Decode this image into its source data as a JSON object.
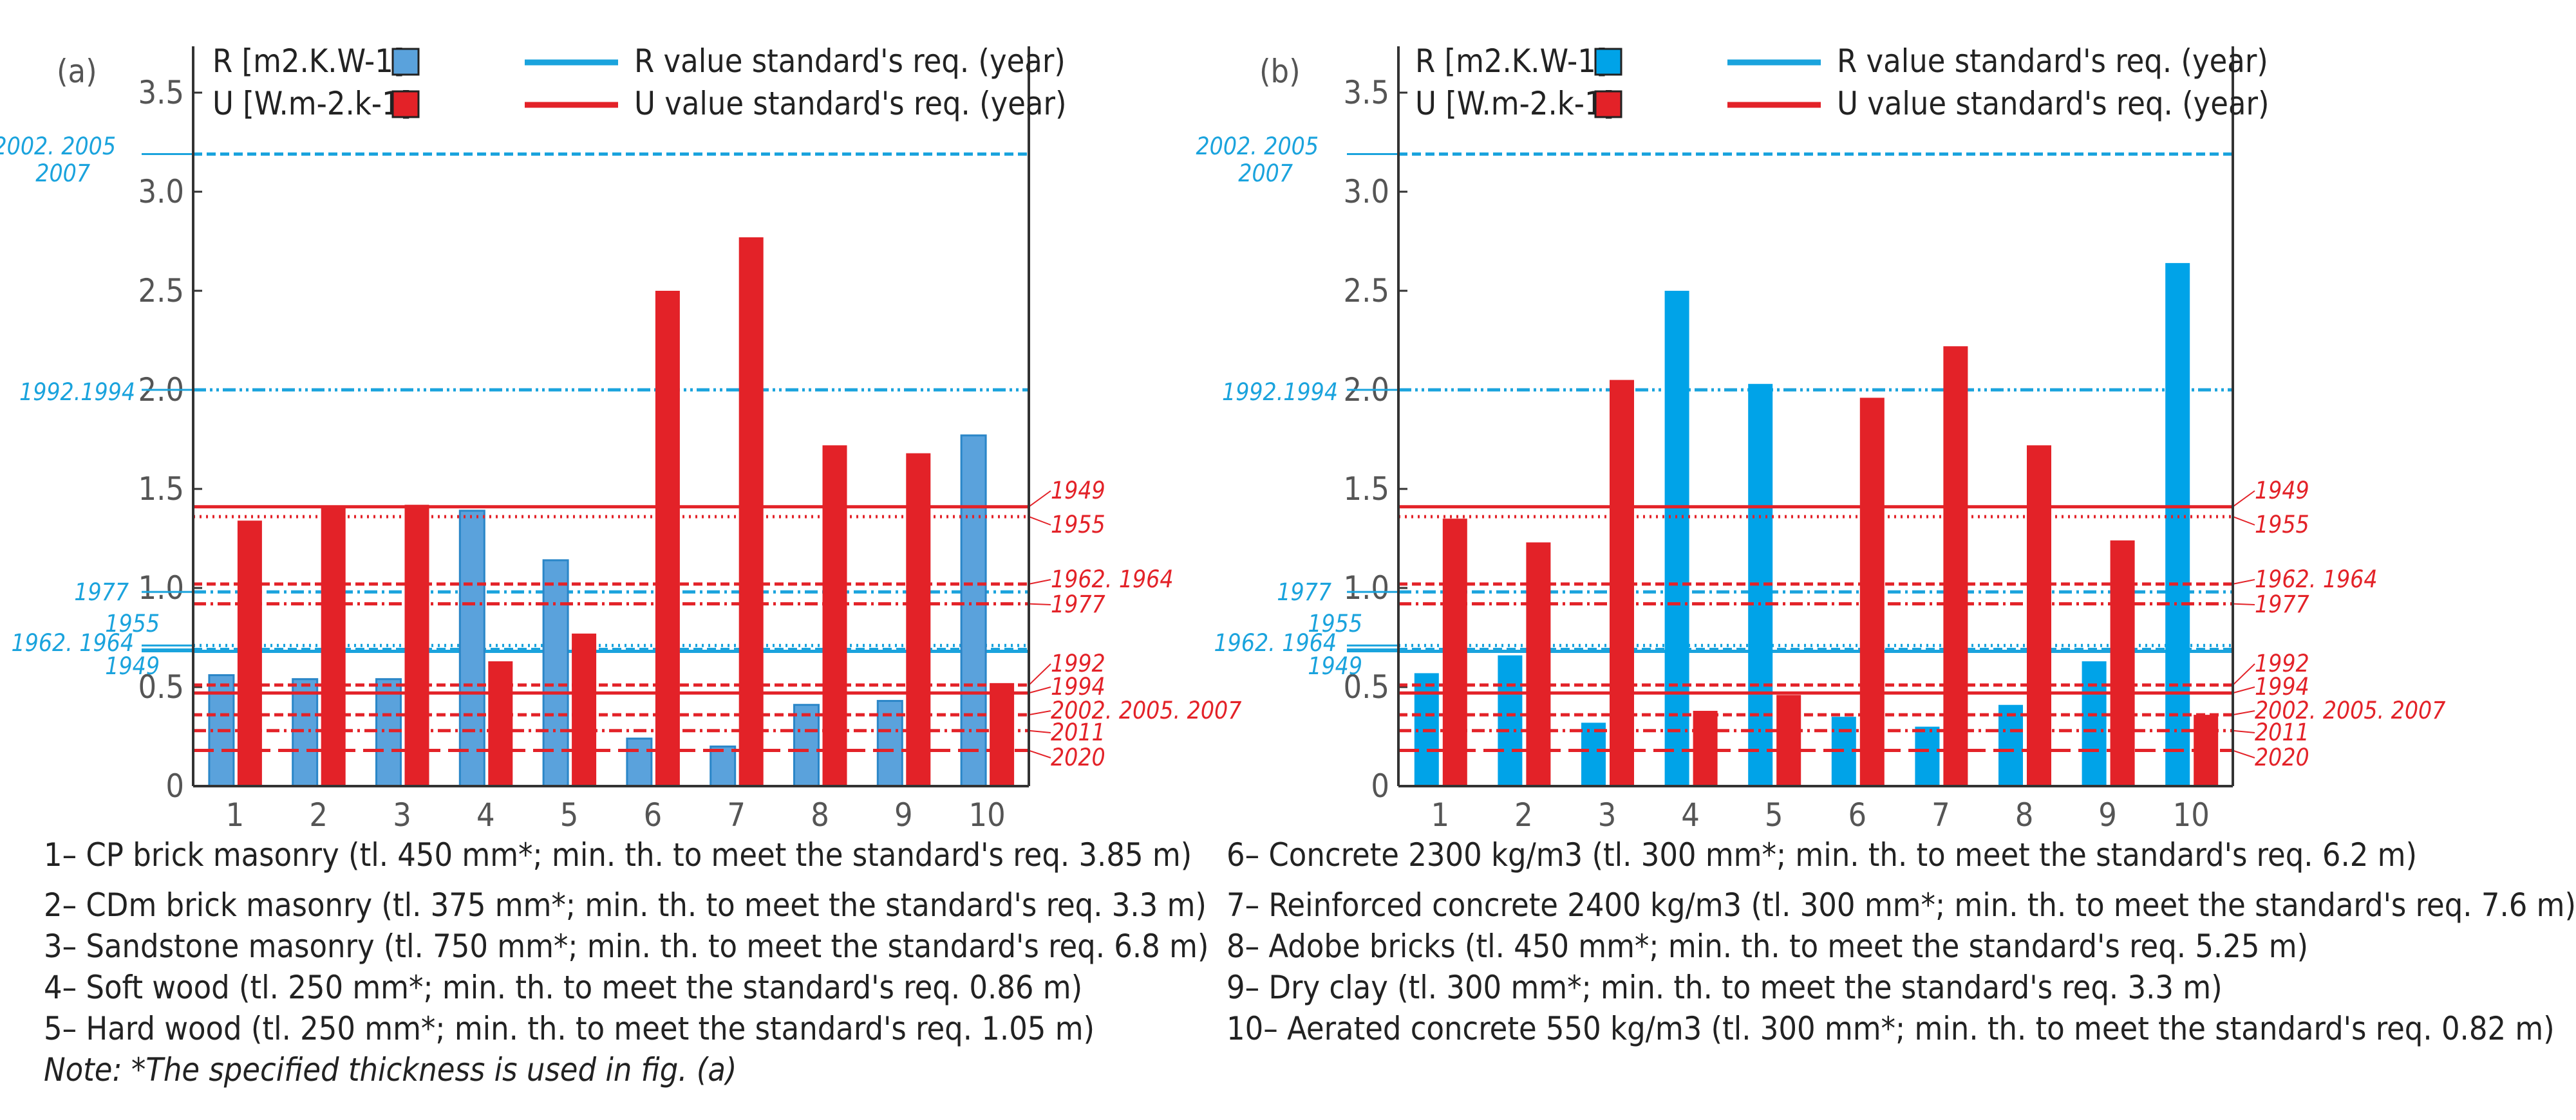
{
  "colors": {
    "r_bar_a": "#5aa2dc",
    "r_bar_a_edge": "#2a86c8",
    "r_bar_b": "#00a3e8",
    "u_bar": "#e32228",
    "r_line": "#1aa3dd",
    "u_line": "#e32228",
    "axis": "#333333"
  },
  "legend": {
    "r_label": "R [m2.K.W-1]",
    "u_label": "U [W.m-2.k-1]",
    "r_req_label": "R value standard's req. (year)",
    "u_req_label": "U value standard's req. (year)"
  },
  "chart_data": [
    {
      "panel": "(a)",
      "type": "bar",
      "categories": [
        "1",
        "2",
        "3",
        "4",
        "5",
        "6",
        "7",
        "8",
        "9",
        "10"
      ],
      "ylim": [
        0,
        3.75
      ],
      "yticks": [
        "0",
        "0.5",
        "1.0",
        "1.5",
        "2.0",
        "2.5",
        "3.0",
        "3.5"
      ],
      "ytick_values": [
        0,
        0.5,
        1.0,
        1.5,
        2.0,
        2.5,
        3.0,
        3.5
      ],
      "series": [
        {
          "name": "R [m2.K.W-1]",
          "values": [
            0.56,
            0.54,
            0.54,
            1.39,
            1.14,
            0.24,
            0.2,
            0.41,
            0.43,
            1.77
          ]
        },
        {
          "name": "U [W.m-2.k-1]",
          "values": [
            1.34,
            1.41,
            1.42,
            0.63,
            0.77,
            2.5,
            2.77,
            1.72,
            1.68,
            0.52
          ]
        }
      ],
      "r_reference_lines": [
        {
          "value": 3.19,
          "style": "dashed",
          "labels": [
            "2002. 2005",
            "2007"
          ]
        },
        {
          "value": 2.0,
          "style": "dashdotdot",
          "labels": [
            "1992.1994"
          ]
        },
        {
          "value": 0.98,
          "style": "dashdot",
          "labels": [
            "1977"
          ]
        },
        {
          "value": 0.71,
          "style": "dotted",
          "labels": [
            "1955"
          ]
        },
        {
          "value": 0.69,
          "style": "dashed",
          "labels": [
            "1962. 1964"
          ]
        },
        {
          "value": 0.68,
          "style": "solid",
          "labels": [
            "1949"
          ]
        }
      ],
      "u_reference_lines": [
        {
          "value": 1.41,
          "style": "solid",
          "label": "1949"
        },
        {
          "value": 1.36,
          "style": "dotted",
          "label": "1955"
        },
        {
          "value": 1.02,
          "style": "dashed",
          "label": "1962. 1964"
        },
        {
          "value": 0.92,
          "style": "dashdot",
          "label": "1977"
        },
        {
          "value": 0.51,
          "style": "dashed",
          "label": "1992"
        },
        {
          "value": 0.47,
          "style": "solid",
          "label": "1994"
        },
        {
          "value": 0.36,
          "style": "dashed",
          "label": "2002. 2005. 2007"
        },
        {
          "value": 0.28,
          "style": "dashdot",
          "label": "2011"
        },
        {
          "value": 0.18,
          "style": "longdash",
          "label": "2020"
        }
      ]
    },
    {
      "panel": "(b)",
      "type": "bar",
      "categories": [
        "1",
        "2",
        "3",
        "4",
        "5",
        "6",
        "7",
        "8",
        "9",
        "10"
      ],
      "ylim": [
        0,
        3.75
      ],
      "yticks": [
        "0",
        "0.5",
        "1.0",
        "1.5",
        "2.0",
        "2.5",
        "3.0",
        "3.5"
      ],
      "ytick_values": [
        0,
        0.5,
        1.0,
        1.5,
        2.0,
        2.5,
        3.0,
        3.5
      ],
      "series": [
        {
          "name": "R [m2.K.W-1]",
          "values": [
            0.57,
            0.66,
            0.32,
            2.5,
            2.03,
            0.35,
            0.3,
            0.41,
            0.63,
            2.64
          ]
        },
        {
          "name": "U [W.m-2.k-1]",
          "values": [
            1.35,
            1.23,
            2.05,
            0.38,
            0.46,
            1.96,
            2.22,
            1.72,
            1.24,
            0.36
          ]
        }
      ],
      "r_reference_lines": [
        {
          "value": 3.19,
          "style": "dashed",
          "labels": [
            "2002. 2005",
            "2007"
          ]
        },
        {
          "value": 2.0,
          "style": "dashdotdot",
          "labels": [
            "1992.1994"
          ]
        },
        {
          "value": 0.98,
          "style": "dashdot",
          "labels": [
            "1977"
          ]
        },
        {
          "value": 0.71,
          "style": "dotted",
          "labels": [
            "1955"
          ]
        },
        {
          "value": 0.69,
          "style": "dashed",
          "labels": [
            "1962. 1964"
          ]
        },
        {
          "value": 0.68,
          "style": "solid",
          "labels": [
            "1949"
          ]
        }
      ],
      "u_reference_lines": [
        {
          "value": 1.41,
          "style": "solid",
          "label": "1949"
        },
        {
          "value": 1.36,
          "style": "dotted",
          "label": "1955"
        },
        {
          "value": 1.02,
          "style": "dashed",
          "label": "1962. 1964"
        },
        {
          "value": 0.92,
          "style": "dashdot",
          "label": "1977"
        },
        {
          "value": 0.51,
          "style": "dashed",
          "label": "1992"
        },
        {
          "value": 0.47,
          "style": "solid",
          "label": "1994"
        },
        {
          "value": 0.36,
          "style": "dashed",
          "label": "2002. 2005. 2007"
        },
        {
          "value": 0.28,
          "style": "dashdot",
          "label": "2011"
        },
        {
          "value": 0.18,
          "style": "longdash",
          "label": "2020"
        }
      ]
    }
  ],
  "footnotes": {
    "left": [
      "1– CP brick masonry (tl. 450 mm*; min. th. to meet the standard's req. 3.85 m)",
      "2– CDm brick masonry (tl. 375 mm*; min. th. to meet the standard's req. 3.3 m)",
      "3– Sandstone masonry (tl. 750 mm*; min. th. to meet the standard's req. 6.8 m)",
      "4– Soft wood (tl. 250 mm*; min. th. to meet the standard's req. 0.86 m)",
      "5– Hard wood (tl. 250 mm*; min. th. to meet the standard's req. 1.05 m)"
    ],
    "note": "Note: *The specified thickness is used in fig. (a)",
    "right": [
      "6– Concrete 2300 kg/m3 (tl. 300 mm*; min. th. to meet the standard's req. 6.2 m)",
      "7– Reinforced concrete 2400 kg/m3 (tl. 300 mm*; min. th. to meet the standard's req. 7.6 m)",
      "8– Adobe bricks (tl. 450 mm*; min. th. to meet the standard's req. 5.25 m)",
      "9– Dry clay (tl. 300 mm*; min. th. to meet the standard's req. 3.3 m)",
      "10– Aerated concrete 550 kg/m3 (tl. 300 mm*; min. th. to meet the standard's req. 0.82 m)"
    ]
  }
}
